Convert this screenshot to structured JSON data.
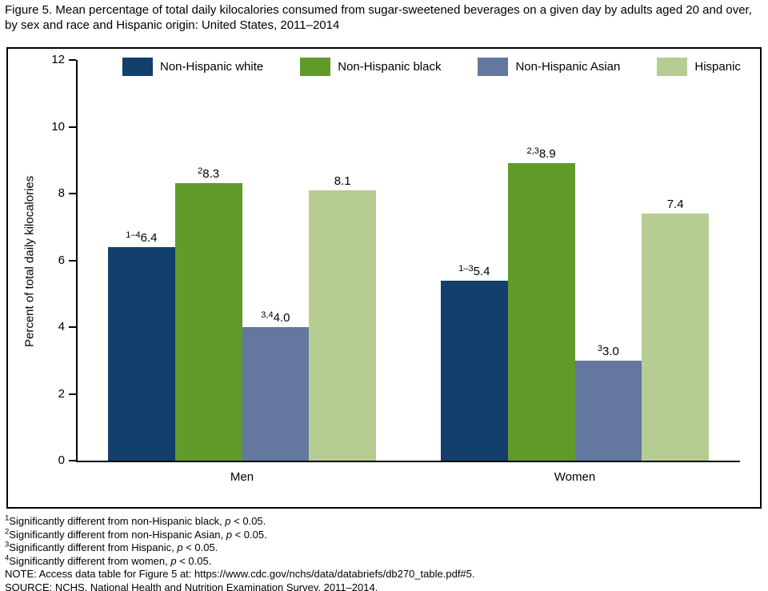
{
  "title": "Figure 5. Mean percentage of total daily kilocalories consumed from sugar-sweetened beverages on a given day by adults aged 20 and over, by sex and race and Hispanic origin: United States, 2011–2014",
  "chart_data": {
    "type": "bar",
    "title": "Figure 5. Mean percentage of total daily kilocalories consumed from sugar-sweetened beverages on a given day by adults aged 20 and over, by sex and race and Hispanic origin: United States, 2011–2014",
    "xlabel": "",
    "ylabel": "Percent of total daily kilocalories",
    "ylim": [
      0,
      12
    ],
    "yticks": [
      0,
      2,
      4,
      6,
      8,
      10,
      12
    ],
    "grid": false,
    "legend_position": "top",
    "categories": [
      "Men",
      "Women"
    ],
    "series": [
      {
        "name": "Non-Hispanic white",
        "color": "#123f6c",
        "values": [
          6.4,
          5.4
        ],
        "label_sups": [
          "1–4",
          "1–3"
        ],
        "label_texts": [
          "6.4",
          "5.4"
        ]
      },
      {
        "name": "Non-Hispanic black",
        "color": "#609a29",
        "values": [
          8.3,
          8.9
        ],
        "label_sups": [
          "2",
          "2,3"
        ],
        "label_texts": [
          "8.3",
          "8.9"
        ]
      },
      {
        "name": "Non-Hispanic Asian",
        "color": "#64779e",
        "values": [
          4.0,
          3.0
        ],
        "label_sups": [
          "3,4",
          "3"
        ],
        "label_texts": [
          "4.0",
          "3.0"
        ]
      },
      {
        "name": "Hispanic",
        "color": "#b7cc92",
        "values": [
          8.1,
          7.4
        ],
        "label_sups": [
          "",
          ""
        ],
        "label_texts": [
          "8.1",
          "7.4"
        ]
      }
    ]
  },
  "footnotes": [
    {
      "sup": "1",
      "text": "Significantly different from non-Hispanic black, ",
      "p": "p",
      "tail": " < 0.05."
    },
    {
      "sup": "2",
      "text": "Significantly different from non-Hispanic Asian, ",
      "p": "p",
      "tail": " < 0.05."
    },
    {
      "sup": "3",
      "text": "Significantly different from Hispanic, ",
      "p": "p",
      "tail": " < 0.05."
    },
    {
      "sup": "4",
      "text": "Significantly different from women, ",
      "p": "p",
      "tail": " < 0.05."
    }
  ],
  "note": "NOTE: Access data table for Figure 5 at: https://www.cdc.gov/nchs/data/databriefs/db270_table.pdf#5.",
  "source": "SOURCE: NCHS, National Health and Nutrition Examination Survey, 2011–2014."
}
